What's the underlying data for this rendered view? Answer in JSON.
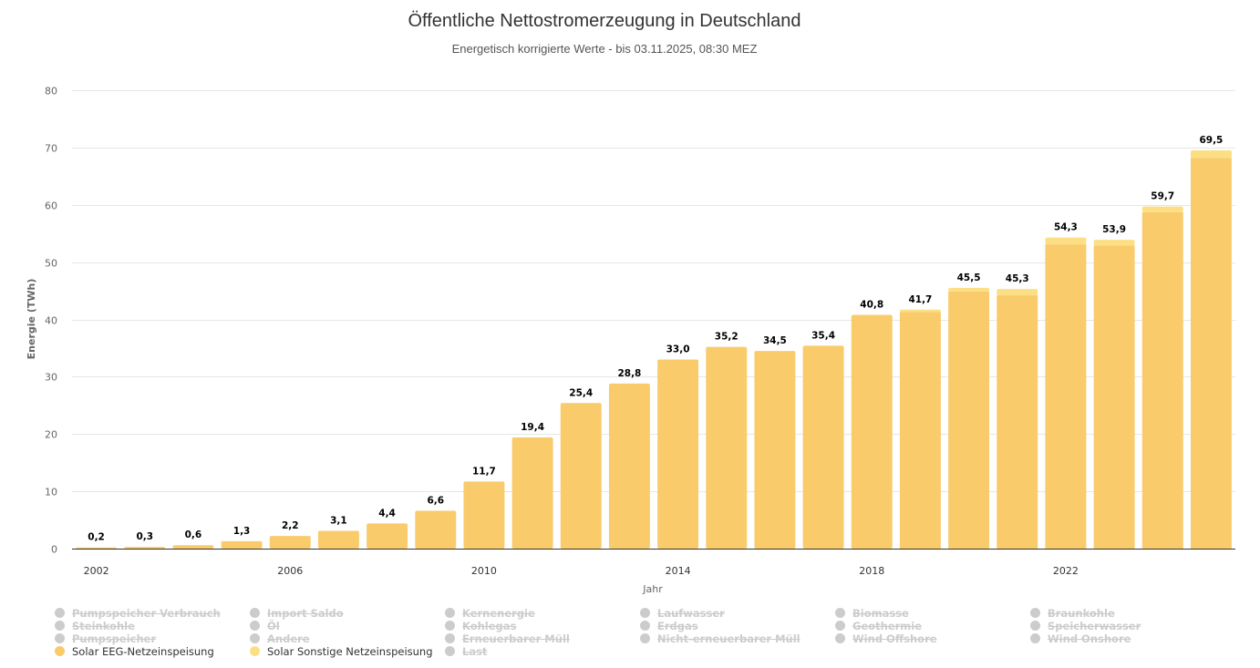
{
  "chart_data": {
    "type": "bar",
    "stacked": true,
    "title": "Öffentliche Nettostromerzeugung in Deutschland",
    "subtitle": "Energetisch korrigierte Werte - bis 03.11.2025, 08:30 MEZ",
    "xlabel": "Jahr",
    "ylabel": "Energie (TWh)",
    "ylim": [
      0,
      80
    ],
    "yticks": [
      0,
      10,
      20,
      30,
      40,
      50,
      60,
      70,
      80
    ],
    "xtick_labels": [
      "2002",
      "2006",
      "2010",
      "2014",
      "2018",
      "2022"
    ],
    "grid": true,
    "categories": [
      "2002",
      "2003",
      "2004",
      "2005",
      "2006",
      "2007",
      "2008",
      "2009",
      "2010",
      "2011",
      "2012",
      "2013",
      "2014",
      "2015",
      "2016",
      "2017",
      "2018",
      "2019",
      "2020",
      "2021",
      "2022",
      "2023",
      "2024",
      "2025"
    ],
    "totals": [
      0.2,
      0.3,
      0.6,
      1.3,
      2.2,
      3.1,
      4.4,
      6.6,
      11.7,
      19.4,
      25.4,
      28.8,
      33.0,
      35.2,
      34.5,
      35.4,
      40.8,
      41.7,
      45.5,
      45.3,
      54.3,
      53.9,
      59.7,
      69.5
    ],
    "total_labels": [
      "0,2",
      "0,3",
      "0,6",
      "1,3",
      "2,2",
      "3,1",
      "4,4",
      "6,6",
      "11,7",
      "19,4",
      "25,4",
      "28,8",
      "33,0",
      "35,2",
      "34,5",
      "35,4",
      "40,8",
      "41,7",
      "45,5",
      "45,3",
      "54,3",
      "53,9",
      "59,7",
      "69,5"
    ],
    "series": [
      {
        "name": "Solar EEG-Netzeinspeisung",
        "color": "#f9cb6b",
        "values": [
          0.2,
          0.3,
          0.6,
          1.3,
          2.2,
          3.1,
          4.4,
          6.6,
          11.7,
          19.4,
          25.4,
          28.8,
          33.0,
          35.2,
          34.5,
          35.4,
          40.8,
          41.3,
          44.9,
          44.2,
          53.1,
          52.9,
          58.7,
          68.2
        ]
      },
      {
        "name": "Solar Sonstige Netzeinspeisung",
        "color": "#fcdf85",
        "values": [
          0,
          0,
          0,
          0,
          0,
          0,
          0,
          0,
          0,
          0,
          0,
          0,
          0,
          0,
          0,
          0,
          0,
          0.4,
          0.6,
          1.1,
          1.2,
          1.0,
          1.0,
          1.3
        ]
      }
    ]
  },
  "legend": {
    "items": [
      {
        "label": "Pumpspeicher Verbrauch",
        "active": false
      },
      {
        "label": "Import Saldo",
        "active": false
      },
      {
        "label": "Kernenergie",
        "active": false
      },
      {
        "label": "Laufwasser",
        "active": false
      },
      {
        "label": "Biomasse",
        "active": false
      },
      {
        "label": "Braunkohle",
        "active": false
      },
      {
        "label": "Steinkohle",
        "active": false
      },
      {
        "label": "Öl",
        "active": false
      },
      {
        "label": "Kohlegas",
        "active": false
      },
      {
        "label": "Erdgas",
        "active": false
      },
      {
        "label": "Geothermie",
        "active": false
      },
      {
        "label": "Speicherwasser",
        "active": false
      },
      {
        "label": "Pumpspeicher",
        "active": false
      },
      {
        "label": "Andere",
        "active": false
      },
      {
        "label": "Erneuerbarer Müll",
        "active": false
      },
      {
        "label": "Nicht-erneuerbarer Müll",
        "active": false
      },
      {
        "label": "Wind Offshore",
        "active": false
      },
      {
        "label": "Wind Onshore",
        "active": false
      },
      {
        "label": "Solar EEG-Netzeinspeisung",
        "active": true,
        "color": "#f9cb6b"
      },
      {
        "label": "Solar Sonstige Netzeinspeisung",
        "active": true,
        "color": "#fcdf85"
      },
      {
        "label": "Last",
        "active": false
      }
    ]
  }
}
